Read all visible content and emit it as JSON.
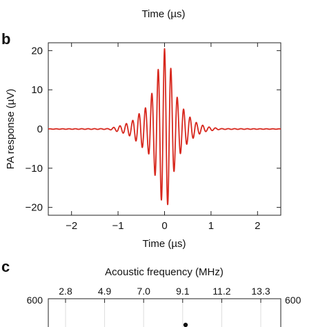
{
  "top_cropped_xlabel": "Time (µs)",
  "chart_data": [
    {
      "panel": "b",
      "type": "line",
      "xlabel": "Time (µs)",
      "ylabel": "PA response (µV)",
      "xlim": [
        -2.5,
        2.5
      ],
      "ylim": [
        -22,
        22
      ],
      "xticks": [
        -2,
        -1,
        0,
        1,
        2
      ],
      "xtick_labels": [
        "−2",
        "−1",
        "0",
        "1",
        "2"
      ],
      "yticks": [
        20,
        10,
        0,
        -10,
        -20
      ],
      "ytick_labels": [
        "20",
        "10",
        "0",
        "−10",
        "−20"
      ],
      "grid": false,
      "series": [
        {
          "color": "#d7281e",
          "x": [
            -2.5,
            -1.2,
            -0.9,
            -0.7,
            -0.5,
            -0.35,
            -0.2,
            -0.1,
            0.0,
            0.05,
            0.1,
            0.2,
            0.3,
            0.5,
            0.7,
            0.9,
            1.2,
            2.5
          ],
          "envelope": [
            0.05,
            0.1,
            1.0,
            2.0,
            4.5,
            6.0,
            12.0,
            17.0,
            20.5,
            20.0,
            18.0,
            11.0,
            7.0,
            3.5,
            1.5,
            0.6,
            0.1,
            0.05
          ]
        }
      ]
    },
    {
      "panel": "c",
      "type": "scatter",
      "xlabel_top": "Acoustic frequency (MHz)",
      "xtick_labels_top": [
        "2.8",
        "4.9",
        "7.0",
        "9.1",
        "11.2",
        "13.3"
      ],
      "ylim_top": 600,
      "ytick_left": "600",
      "ytick_right": "600"
    }
  ]
}
